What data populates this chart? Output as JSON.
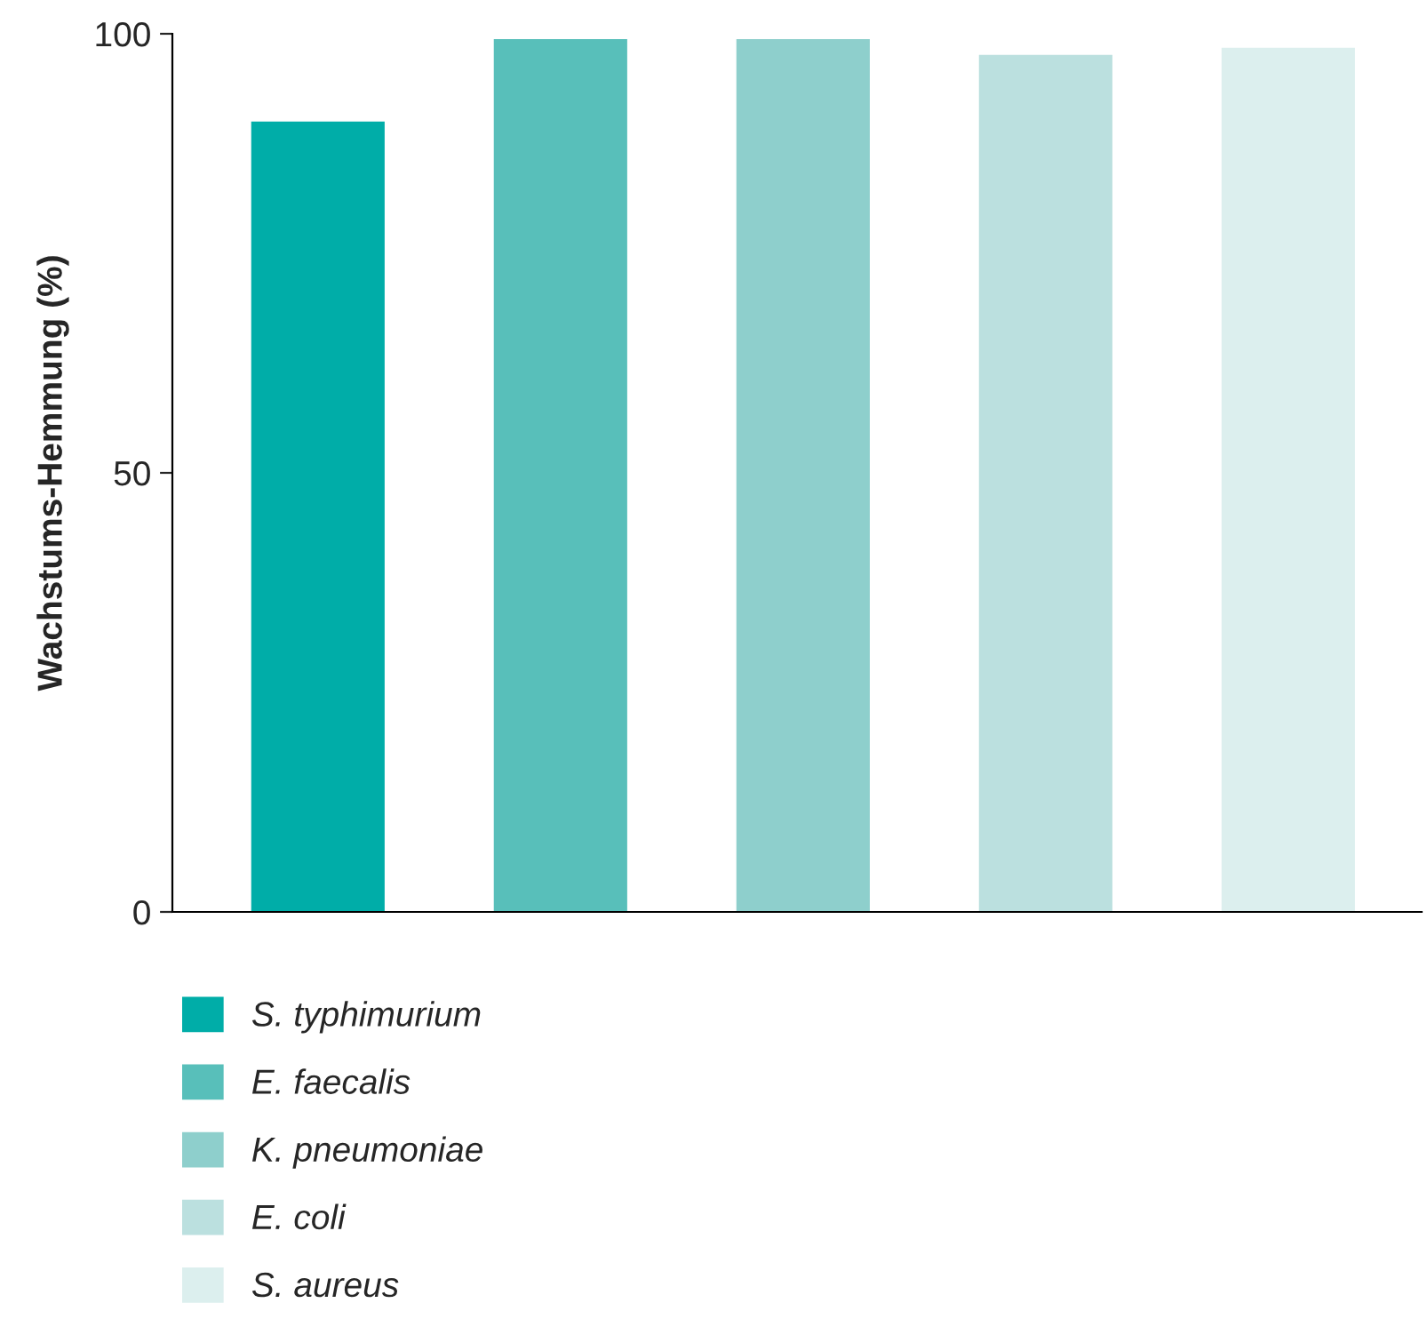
{
  "chart_data": {
    "type": "bar",
    "ylabel": "Wachstums-Hemmung (%)",
    "categories": [
      null,
      null,
      null,
      null,
      null
    ],
    "series": [
      {
        "name": "S. typhimurium",
        "color": "#00ada8",
        "values": [
          90,
          null,
          null,
          null,
          null
        ]
      },
      {
        "name": "E. faecalis",
        "color": "#58bfba",
        "values": [
          null,
          99.4,
          null,
          null,
          null
        ]
      },
      {
        "name": "K. pneumoniae",
        "color": "#8ecfcc",
        "values": [
          null,
          null,
          99.4,
          null,
          null
        ]
      },
      {
        "name": "E. coli",
        "color": "#bbe0df",
        "values": [
          null,
          null,
          null,
          97.6,
          null
        ]
      },
      {
        "name": "S. aureus",
        "color": "#dcefee",
        "values": [
          null,
          null,
          null,
          null,
          98.4
        ]
      }
    ],
    "ylim": [
      0,
      100
    ],
    "yticks": [
      0,
      50,
      100
    ],
    "grid": false,
    "legend": "bottom left"
  }
}
